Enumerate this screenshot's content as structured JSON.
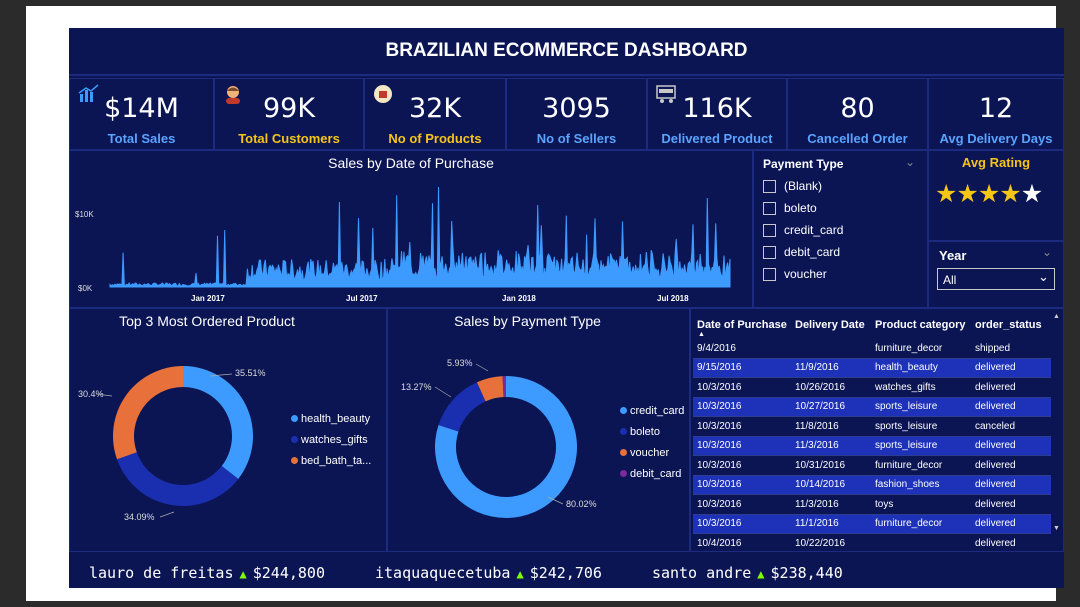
{
  "dashboard_title": "BRAZILIAN ECOMMERCE DASHBOARD",
  "kpis": [
    {
      "value": "$14M",
      "label": "Total Sales",
      "icon": "chart-icon"
    },
    {
      "value": "99K",
      "label": "Total Customers",
      "icon": "customer-icon"
    },
    {
      "value": "32K",
      "label": "No of Products",
      "icon": "product-icon"
    },
    {
      "value": "3095",
      "label": "No of Sellers",
      "icon": ""
    },
    {
      "value": "116K",
      "label": "Delivered Product",
      "icon": "truck-icon"
    },
    {
      "value": "80",
      "label": "Cancelled Order",
      "icon": ""
    },
    {
      "value": "12",
      "label": "Avg Delivery Days",
      "icon": ""
    }
  ],
  "sales_by_date": {
    "title": "Sales by Date of Purchase",
    "y_ticks": [
      "$10K",
      "$0K"
    ],
    "x_ticks": [
      "Jan 2017",
      "Jul 2017",
      "Jan 2018",
      "Jul 2018"
    ]
  },
  "payment_filter": {
    "title": "Payment Type",
    "options": [
      "(Blank)",
      "boleto",
      "credit_card",
      "debit_card",
      "voucher"
    ]
  },
  "avg_rating": {
    "title": "Avg Rating",
    "stars": 4,
    "max": 5
  },
  "year_filter": {
    "title": "Year",
    "value": "All"
  },
  "top_products": {
    "title": "Top 3 Most Ordered Product",
    "labels": [
      "35.51%",
      "34.09%",
      "30.4%"
    ],
    "legend": [
      "health_beauty",
      "watches_gifts",
      "bed_bath_ta..."
    ]
  },
  "payment_sales": {
    "title": "Sales by Payment Type",
    "labels": [
      "80.02%",
      "13.27%",
      "5.93%"
    ],
    "legend": [
      "credit_card",
      "boleto",
      "voucher",
      "debit_card"
    ]
  },
  "orders_table": {
    "columns": [
      "Date of Purchase",
      "Delivery Date",
      "Product category",
      "order_status"
    ],
    "rows": [
      [
        "9/4/2016",
        "",
        "furniture_decor",
        "shipped"
      ],
      [
        "9/15/2016",
        "11/9/2016",
        "health_beauty",
        "delivered"
      ],
      [
        "10/3/2016",
        "10/26/2016",
        "watches_gifts",
        "delivered"
      ],
      [
        "10/3/2016",
        "10/27/2016",
        "sports_leisure",
        "delivered"
      ],
      [
        "10/3/2016",
        "11/8/2016",
        "sports_leisure",
        "canceled"
      ],
      [
        "10/3/2016",
        "11/3/2016",
        "sports_leisure",
        "delivered"
      ],
      [
        "10/3/2016",
        "10/31/2016",
        "furniture_decor",
        "delivered"
      ],
      [
        "10/3/2016",
        "10/14/2016",
        "fashion_shoes",
        "delivered"
      ],
      [
        "10/3/2016",
        "11/3/2016",
        "toys",
        "delivered"
      ],
      [
        "10/3/2016",
        "11/1/2016",
        "furniture_decor",
        "delivered"
      ],
      [
        "10/4/2016",
        "10/22/2016",
        "",
        "delivered"
      ]
    ]
  },
  "ticker": [
    {
      "city": "lauro de freitas",
      "value": "$244,800"
    },
    {
      "city": "itaquaquecetuba",
      "value": "$242,706"
    },
    {
      "city": "santo andre",
      "value": "$238,440"
    }
  ],
  "colors": {
    "background": "#0b1554",
    "accent_blue": "#3d9bff",
    "dark_blue": "#1a2fb0",
    "orange": "#e8703a",
    "purple": "#7a2a9a",
    "gold": "#f5c518"
  },
  "chart_data": [
    {
      "type": "area",
      "title": "Sales by Date of Purchase",
      "x_range": [
        "2016-09",
        "2018-09"
      ],
      "ylim": [
        0,
        14000
      ],
      "x_ticks": [
        "Jan 2017",
        "Jul 2017",
        "Jan 2018",
        "Jul 2018"
      ],
      "y_ticks": [
        "$0K",
        "$10K"
      ]
    },
    {
      "type": "pie",
      "title": "Top 3 Most Ordered Product",
      "categories": [
        "health_beauty",
        "watches_gifts",
        "bed_bath_ta..."
      ],
      "values": [
        35.51,
        34.09,
        30.4
      ],
      "colors": [
        "#3d9bff",
        "#1a2fb0",
        "#e8703a"
      ]
    },
    {
      "type": "pie",
      "title": "Sales by Payment Type",
      "categories": [
        "credit_card",
        "boleto",
        "voucher",
        "debit_card"
      ],
      "values": [
        80.02,
        13.27,
        5.93,
        0.78
      ],
      "colors": [
        "#3d9bff",
        "#1a2fb0",
        "#e8703a",
        "#7a2a9a"
      ]
    }
  ]
}
